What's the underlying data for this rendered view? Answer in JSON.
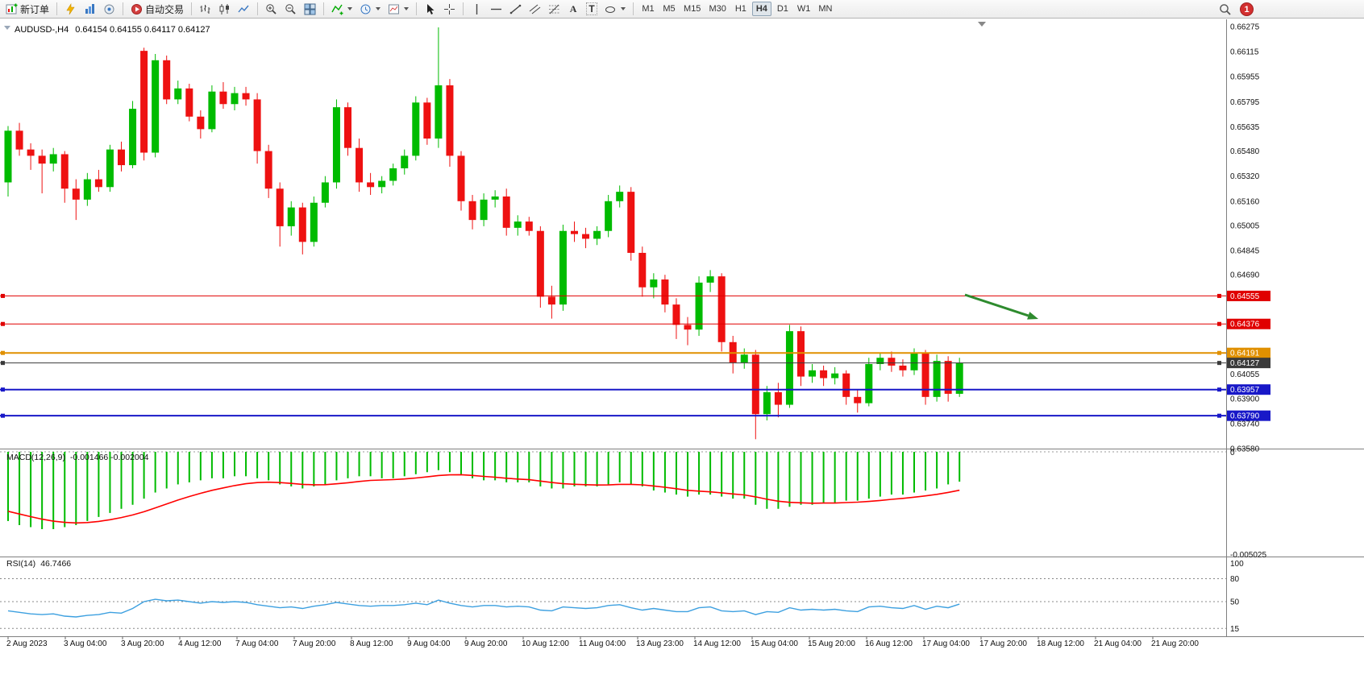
{
  "toolbar": {
    "new_order_label": "新订单",
    "auto_trading_label": "自动交易",
    "text_tool_glyph": "A",
    "label_tool_glyph": "T",
    "timeframes": [
      "M1",
      "M5",
      "M15",
      "M30",
      "H1",
      "H4",
      "D1",
      "W1",
      "MN"
    ],
    "active_timeframe": "H4",
    "notification_count": "1"
  },
  "chart": {
    "symbol_title": "AUDUSD-,H4",
    "ohlc_text": "0.64154 0.64155 0.64117 0.64127"
  },
  "chart_data": {
    "type": "candlestick",
    "symbol": "AUDUSD-",
    "timeframe": "H4",
    "price_axis_range": [
      0.6358,
      0.66275
    ],
    "price_axis_labels": [
      "0.66275",
      "0.66115",
      "0.65955",
      "0.65795",
      "0.65635",
      "0.65480",
      "0.65320",
      "0.65160",
      "0.65005",
      "0.64845",
      "0.64690",
      "0.64055",
      "0.63900",
      "0.63740",
      "0.63580"
    ],
    "hlines": [
      {
        "price": 0.64555,
        "label": "0.64555",
        "color": "#e00000",
        "width": 1
      },
      {
        "price": 0.64376,
        "label": "0.64376",
        "color": "#e00000",
        "width": 1
      },
      {
        "price": 0.64191,
        "label": "0.64191",
        "color": "#e09000",
        "width": 2
      },
      {
        "price": 0.64127,
        "label": "0.64127",
        "color": "#3a3a3a",
        "width": 1
      },
      {
        "price": 0.63957,
        "label": "0.63957",
        "color": "#1818c8",
        "width": 2
      },
      {
        "price": 0.6379,
        "label": "0.63790",
        "color": "#1818c8",
        "width": 2
      }
    ],
    "candles": [
      [
        0.6528,
        0.6564,
        0.6519,
        0.6561
      ],
      [
        0.6561,
        0.6566,
        0.6545,
        0.6549
      ],
      [
        0.6549,
        0.6553,
        0.6536,
        0.6545
      ],
      [
        0.6545,
        0.6549,
        0.6521,
        0.654
      ],
      [
        0.654,
        0.655,
        0.6535,
        0.6546
      ],
      [
        0.6546,
        0.6548,
        0.6515,
        0.6524
      ],
      [
        0.6524,
        0.653,
        0.6504,
        0.6517
      ],
      [
        0.6517,
        0.6534,
        0.6513,
        0.653
      ],
      [
        0.653,
        0.6536,
        0.6522,
        0.6525
      ],
      [
        0.6525,
        0.6552,
        0.6522,
        0.6549
      ],
      [
        0.6549,
        0.6554,
        0.6535,
        0.6539
      ],
      [
        0.6539,
        0.658,
        0.6537,
        0.6575
      ],
      [
        0.6612,
        0.6614,
        0.6542,
        0.6547
      ],
      [
        0.6547,
        0.661,
        0.6544,
        0.6606
      ],
      [
        0.6606,
        0.6609,
        0.6578,
        0.6581
      ],
      [
        0.6581,
        0.6593,
        0.6578,
        0.6588
      ],
      [
        0.6588,
        0.6591,
        0.6567,
        0.657
      ],
      [
        0.657,
        0.6574,
        0.6556,
        0.6562
      ],
      [
        0.6562,
        0.659,
        0.656,
        0.6586
      ],
      [
        0.6586,
        0.6592,
        0.6575,
        0.6578
      ],
      [
        0.6578,
        0.6589,
        0.6574,
        0.6585
      ],
      [
        0.6585,
        0.6589,
        0.6577,
        0.6581
      ],
      [
        0.6581,
        0.6585,
        0.654,
        0.6548
      ],
      [
        0.6548,
        0.6552,
        0.6518,
        0.6524
      ],
      [
        0.6524,
        0.6528,
        0.6487,
        0.65
      ],
      [
        0.65,
        0.6516,
        0.6494,
        0.6512
      ],
      [
        0.6512,
        0.6515,
        0.6482,
        0.649
      ],
      [
        0.649,
        0.6519,
        0.6487,
        0.6515
      ],
      [
        0.6515,
        0.6532,
        0.6512,
        0.6528
      ],
      [
        0.6528,
        0.6581,
        0.6524,
        0.6576
      ],
      [
        0.6576,
        0.6579,
        0.6545,
        0.655
      ],
      [
        0.655,
        0.6556,
        0.6522,
        0.6528
      ],
      [
        0.6528,
        0.6534,
        0.652,
        0.6525
      ],
      [
        0.6525,
        0.6532,
        0.6521,
        0.6529
      ],
      [
        0.6529,
        0.654,
        0.6526,
        0.6537
      ],
      [
        0.6537,
        0.6549,
        0.6533,
        0.6545
      ],
      [
        0.6545,
        0.6583,
        0.6542,
        0.6579
      ],
      [
        0.6579,
        0.6582,
        0.6552,
        0.6556
      ],
      [
        0.6556,
        0.6627,
        0.655,
        0.659
      ],
      [
        0.659,
        0.6594,
        0.6538,
        0.6545
      ],
      [
        0.6545,
        0.6548,
        0.651,
        0.6516
      ],
      [
        0.6516,
        0.652,
        0.6498,
        0.6504
      ],
      [
        0.6504,
        0.6521,
        0.65,
        0.6517
      ],
      [
        0.6517,
        0.6523,
        0.6512,
        0.6519
      ],
      [
        0.6519,
        0.6524,
        0.6494,
        0.6499
      ],
      [
        0.6499,
        0.6507,
        0.6494,
        0.6503
      ],
      [
        0.6503,
        0.6506,
        0.6494,
        0.6497
      ],
      [
        0.6497,
        0.65,
        0.6448,
        0.6455
      ],
      [
        0.6455,
        0.6462,
        0.6441,
        0.645
      ],
      [
        0.645,
        0.6501,
        0.6446,
        0.6497
      ],
      [
        0.6497,
        0.6503,
        0.649,
        0.6495
      ],
      [
        0.6495,
        0.6499,
        0.6486,
        0.6492
      ],
      [
        0.6492,
        0.65,
        0.6488,
        0.6497
      ],
      [
        0.6497,
        0.652,
        0.6493,
        0.6516
      ],
      [
        0.6516,
        0.6526,
        0.6512,
        0.6522
      ],
      [
        0.6522,
        0.6525,
        0.6478,
        0.6483
      ],
      [
        0.6483,
        0.6487,
        0.6455,
        0.6461
      ],
      [
        0.6461,
        0.647,
        0.6454,
        0.6466
      ],
      [
        0.6466,
        0.6469,
        0.6445,
        0.645
      ],
      [
        0.645,
        0.6454,
        0.6428,
        0.6437
      ],
      [
        0.6437,
        0.6442,
        0.6424,
        0.6434
      ],
      [
        0.6434,
        0.6468,
        0.643,
        0.6464
      ],
      [
        0.6464,
        0.6472,
        0.6458,
        0.6468
      ],
      [
        0.6468,
        0.647,
        0.642,
        0.6426
      ],
      [
        0.6426,
        0.643,
        0.6406,
        0.6413
      ],
      [
        0.6413,
        0.6422,
        0.6409,
        0.6418
      ],
      [
        0.6418,
        0.6421,
        0.6364,
        0.638
      ],
      [
        0.638,
        0.6398,
        0.6376,
        0.6394
      ],
      [
        0.6394,
        0.64,
        0.6378,
        0.6386
      ],
      [
        0.6386,
        0.6437,
        0.6384,
        0.6433
      ],
      [
        0.6433,
        0.6436,
        0.6398,
        0.6404
      ],
      [
        0.6404,
        0.6412,
        0.64,
        0.6408
      ],
      [
        0.6408,
        0.6411,
        0.6398,
        0.6403
      ],
      [
        0.6403,
        0.641,
        0.6399,
        0.6406
      ],
      [
        0.6406,
        0.6408,
        0.6386,
        0.6391
      ],
      [
        0.6391,
        0.6396,
        0.6381,
        0.6387
      ],
      [
        0.6387,
        0.6416,
        0.6385,
        0.6412
      ],
      [
        0.6412,
        0.6419,
        0.6408,
        0.6416
      ],
      [
        0.6416,
        0.642,
        0.6407,
        0.6411
      ],
      [
        0.6411,
        0.6415,
        0.6404,
        0.6408
      ],
      [
        0.6408,
        0.6422,
        0.6405,
        0.6419
      ],
      [
        0.6419,
        0.6421,
        0.6386,
        0.6391
      ],
      [
        0.6391,
        0.6418,
        0.6388,
        0.6414
      ],
      [
        0.6414,
        0.6417,
        0.6388,
        0.6393
      ],
      [
        0.6393,
        0.6416,
        0.6391,
        0.64127
      ]
    ],
    "macd": {
      "label": "MACD(12,26,9)",
      "values_text": "-0.001466 -0.002004",
      "scale_top": "0",
      "scale_bottom": "-0.005025",
      "main": [
        -0.0034,
        -0.0036,
        -0.0037,
        -0.0038,
        -0.0038,
        -0.0037,
        -0.0036,
        -0.0034,
        -0.0032,
        -0.003,
        -0.0028,
        -0.0026,
        -0.0023,
        -0.002,
        -0.0018,
        -0.0016,
        -0.0015,
        -0.0014,
        -0.0013,
        -0.0013,
        -0.0012,
        -0.0012,
        -0.0013,
        -0.0014,
        -0.0016,
        -0.0017,
        -0.0018,
        -0.0017,
        -0.0016,
        -0.0014,
        -0.0013,
        -0.0012,
        -0.0012,
        -0.0013,
        -0.0013,
        -0.0012,
        -0.0011,
        -0.001,
        -0.0009,
        -0.001,
        -0.0011,
        -0.0013,
        -0.0014,
        -0.0014,
        -0.0015,
        -0.0015,
        -0.0015,
        -0.0017,
        -0.0018,
        -0.0018,
        -0.0017,
        -0.0017,
        -0.0017,
        -0.0016,
        -0.0015,
        -0.0016,
        -0.0017,
        -0.0019,
        -0.002,
        -0.0021,
        -0.0022,
        -0.0021,
        -0.0021,
        -0.0022,
        -0.0023,
        -0.0023,
        -0.0026,
        -0.0028,
        -0.0028,
        -0.0027,
        -0.0026,
        -0.0026,
        -0.0025,
        -0.0025,
        -0.0024,
        -0.0024,
        -0.0023,
        -0.0022,
        -0.0021,
        -0.0021,
        -0.002,
        -0.0019,
        -0.0018,
        -0.0016,
        -0.001466
      ]
    },
    "rsi": {
      "label": "RSI(14)",
      "value_text": "46.7466",
      "levels": [
        "100",
        "80",
        "50",
        "15"
      ],
      "values": [
        38,
        36,
        34,
        33,
        34,
        31,
        30,
        32,
        33,
        36,
        35,
        41,
        50,
        53,
        51,
        52,
        50,
        48,
        50,
        49,
        50,
        49,
        46,
        44,
        42,
        43,
        41,
        44,
        46,
        49,
        47,
        45,
        44,
        45,
        45,
        46,
        48,
        46,
        52,
        48,
        45,
        43,
        45,
        45,
        43,
        44,
        43,
        39,
        38,
        43,
        42,
        41,
        42,
        45,
        46,
        42,
        39,
        41,
        39,
        37,
        37,
        42,
        43,
        38,
        37,
        38,
        33,
        37,
        36,
        42,
        39,
        40,
        39,
        40,
        38,
        37,
        43,
        44,
        42,
        41,
        45,
        40,
        44,
        42,
        46.7
      ]
    },
    "time_labels": [
      "2 Aug 2023",
      "3 Aug 04:00",
      "3 Aug 20:00",
      "4 Aug 12:00",
      "7 Aug 04:00",
      "7 Aug 20:00",
      "8 Aug 12:00",
      "9 Aug 04:00",
      "9 Aug 20:00",
      "10 Aug 12:00",
      "11 Aug 04:00",
      "13 Aug 23:00",
      "14 Aug 12:00",
      "15 Aug 04:00",
      "15 Aug 20:00",
      "16 Aug 12:00",
      "17 Aug 04:00",
      "17 Aug 20:00",
      "18 Aug 12:00",
      "21 Aug 04:00",
      "21 Aug 20:00"
    ],
    "annotations": [
      {
        "type": "arrow",
        "from": [
          1197,
          342
        ],
        "to": [
          1288,
          372
        ],
        "color": "#2e8b2e"
      }
    ],
    "colors": {
      "up": "#00bb00",
      "down": "#ee1111",
      "macd_bar": "#00bb00",
      "macd_signal": "#ff0000",
      "rsi_line": "#3da0e0",
      "axis_line": "#808080"
    }
  }
}
